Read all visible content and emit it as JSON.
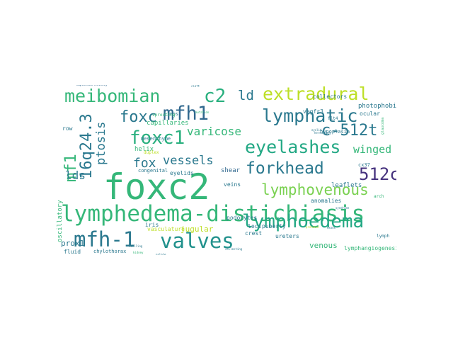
{
  "wordcloud": {
    "words": [
      {
        "text": "foxc2",
        "color": "#35b779"
      },
      {
        "text": "lymphedema-distichiasis",
        "color": "#35b779"
      },
      {
        "text": "valves",
        "color": "#21918c"
      },
      {
        "text": "mfh-1",
        "color": "#2a788e"
      },
      {
        "text": "lymphoedema",
        "color": "#22a884"
      },
      {
        "text": "eyelashes",
        "color": "#22a884"
      },
      {
        "text": "lymphatic",
        "color": "#2a788e"
      },
      {
        "text": "foxc1",
        "color": "#2ab07f"
      },
      {
        "text": "mfh1",
        "color": "#31688e"
      },
      {
        "text": "extradural",
        "color": "#bddf26"
      },
      {
        "text": "meibomian",
        "color": "#35b779"
      },
      {
        "text": "forkhead",
        "color": "#2a788e"
      },
      {
        "text": "lymphovenous",
        "color": "#7ad151"
      },
      {
        "text": "c-512t",
        "color": "#2a788e"
      },
      {
        "text": "512c",
        "color": "#46327e"
      },
      {
        "text": "foxc",
        "color": "#2a788e"
      },
      {
        "text": "c2",
        "color": "#2ab07f"
      },
      {
        "text": "16q24.3",
        "color": "#2a788e"
      },
      {
        "text": "mf1",
        "color": "#35b779"
      },
      {
        "text": "winged",
        "color": "#35b779"
      },
      {
        "text": "vessels",
        "color": "#2a788e"
      },
      {
        "text": "varicose",
        "color": "#35b779"
      },
      {
        "text": "fox",
        "color": "#2a788e"
      },
      {
        "text": "ld",
        "color": "#2a788e"
      },
      {
        "text": "lds",
        "color": "#2a788e"
      },
      {
        "text": "ptosis",
        "color": "#2a788e"
      },
      {
        "text": "jugular",
        "color": "#bddf26"
      },
      {
        "text": "venous",
        "color": "#35b779"
      },
      {
        "text": "prox1",
        "color": "#2a788e"
      },
      {
        "text": "photophobia",
        "color": "#2a788e"
      },
      {
        "text": "lymphangiogenesis",
        "color": "#35b779"
      },
      {
        "text": "pubertal",
        "color": "#35b779"
      },
      {
        "text": "vegfr3",
        "color": "#2a788e"
      },
      {
        "text": "capillaries",
        "color": "#35b779"
      },
      {
        "text": "mesenchyme",
        "color": "#2a788e"
      },
      {
        "text": "hypoplasia",
        "color": "#2a788e"
      },
      {
        "text": "ocular",
        "color": "#2a788e"
      },
      {
        "text": "eyelids",
        "color": "#2a788e"
      },
      {
        "text": "congenital",
        "color": "#2a788e"
      },
      {
        "text": "helix",
        "color": "#35b779"
      },
      {
        "text": "shear",
        "color": "#31688e"
      },
      {
        "text": "leaflets",
        "color": "#2a788e"
      },
      {
        "text": "veins",
        "color": "#2a788e"
      },
      {
        "text": "anomalies",
        "color": "#2a788e"
      },
      {
        "text": "row",
        "color": "#2a788e"
      },
      {
        "text": "collectors",
        "color": "#2a788e"
      },
      {
        "text": "podocytes",
        "color": "#2a788e"
      },
      {
        "text": "iris",
        "color": "#2a788e"
      },
      {
        "text": "vasculature",
        "color": "#bddf26"
      },
      {
        "text": "lecs",
        "color": "#2a788e"
      },
      {
        "text": "puberty",
        "color": "#2a788e"
      },
      {
        "text": "crest",
        "color": "#2a788e"
      },
      {
        "text": "ureters",
        "color": "#2a788e"
      },
      {
        "text": "chylothorax",
        "color": "#2a788e"
      },
      {
        "text": "fluid",
        "color": "#2a788e"
      },
      {
        "text": "oscillatory",
        "color": "#35b779"
      },
      {
        "text": "cx37",
        "color": "#2a788e"
      },
      {
        "text": "limbs",
        "color": "#2a788e"
      },
      {
        "text": "duplex",
        "color": "#bddf26"
      },
      {
        "text": "sprouting",
        "color": "#35b779"
      },
      {
        "text": "lymphangiogenic",
        "color": "#2a788e"
      },
      {
        "text": "haploinsufficiency",
        "color": "#31688e"
      },
      {
        "text": "cardiovascular",
        "color": "#31688e"
      },
      {
        "text": "morphogenesis",
        "color": "#31688e"
      },
      {
        "text": "flt4",
        "color": "#2a788e"
      },
      {
        "text": "arch",
        "color": "#35b779"
      },
      {
        "text": "lymph",
        "color": "#2a788e"
      },
      {
        "text": "glaucoma",
        "color": "#35b779"
      },
      {
        "text": "hereditary",
        "color": "#2a788e"
      },
      {
        "text": "syndrome",
        "color": "#2a788e"
      },
      {
        "text": "eyelid",
        "color": "#2a788e"
      },
      {
        "text": "collecting",
        "color": "#2a788e"
      },
      {
        "text": "palate",
        "color": "#2a788e"
      },
      {
        "text": "kidney",
        "color": "#35b779"
      },
      {
        "text": "swelling",
        "color": "#2a788e"
      },
      {
        "text": "cleft",
        "color": "#2a788e"
      },
      {
        "text": "mutation",
        "color": "#35b779"
      },
      {
        "text": "prenatal",
        "color": "#bddf26"
      },
      {
        "text": "exons",
        "color": "#2a788e"
      }
    ]
  }
}
